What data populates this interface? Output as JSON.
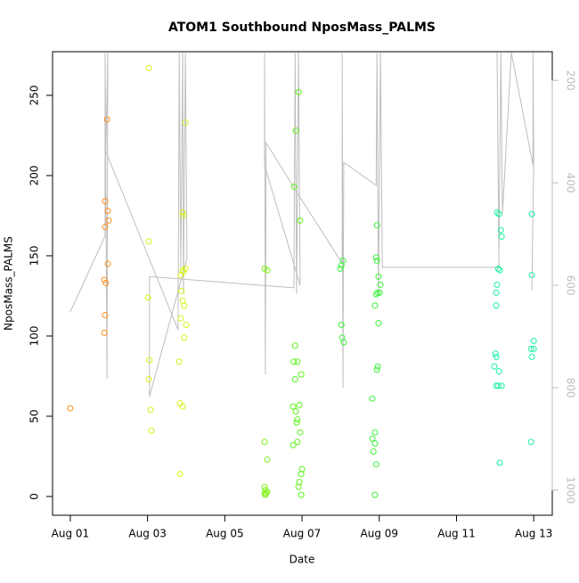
{
  "chart_data": {
    "type": "scatter",
    "title": "ATOM1 Southbound NposMass_PALMS",
    "x_label": "Date",
    "y_label": "NposMass_PALMS",
    "xlim": [
      0.54,
      13.48
    ],
    "xticks": [
      {
        "value": 1,
        "label": "Aug 01"
      },
      {
        "value": 3,
        "label": "Aug 03"
      },
      {
        "value": 5,
        "label": "Aug 05"
      },
      {
        "value": 7,
        "label": "Aug 07"
      },
      {
        "value": 9,
        "label": "Aug 09"
      },
      {
        "value": 11,
        "label": "Aug 11"
      },
      {
        "value": 13,
        "label": "Aug 13"
      }
    ],
    "ylim": [
      -11.7,
      277.2
    ],
    "yticks": [
      0,
      50,
      100,
      150,
      200,
      250
    ],
    "y2lim": [
      1049,
      144
    ],
    "y2ticks": [
      200,
      400,
      600,
      800,
      1000
    ],
    "y2_color": "#bebebe",
    "series": [
      {
        "mode": "line",
        "axis": "y2",
        "color": "#bebebe",
        "x": [
          1.0,
          1.9,
          1.9,
          1.95,
          1.97,
          1.92,
          3.79,
          3.82,
          3.86,
          3.91,
          3.93,
          3.98,
          4.02,
          3.05,
          3.05,
          6.79,
          6.82,
          6.86,
          6.91,
          6.95,
          6.03,
          6.03,
          6.05,
          6.07,
          6.93,
          8.04,
          8.04,
          8.06,
          8.08,
          8.92,
          8.94,
          8.98,
          9.03,
          9.08,
          12.1,
          12.05,
          12.1,
          12.15,
          12.19,
          12.42,
          12.98,
          12.98,
          13.0,
          12.95
        ],
        "values": [
          652,
          504,
          146,
          783,
          146,
          339,
          687,
          146,
          565,
          146,
          617,
          146,
          548,
          817,
          583,
          605,
          146,
          617,
          146,
          600,
          365,
          146,
          774,
          322,
          426,
          557,
          146,
          800,
          360,
          405,
          146,
          617,
          146,
          565,
          565,
          146,
          530,
          146,
          461,
          146,
          365,
          146,
          360,
          609
        ]
      },
      {
        "mode": "points",
        "color": "#ff8c1a",
        "x": [
          1.0,
          1.95,
          1.9,
          1.97,
          1.99,
          1.9,
          1.97,
          1.88,
          1.92,
          1.9,
          1.88
        ],
        "values": [
          55,
          235,
          184,
          178,
          172,
          168,
          145,
          135,
          133,
          113,
          102
        ]
      },
      {
        "mode": "points",
        "color": "#d9f21a",
        "x": [
          3.03,
          3.03,
          3.01,
          3.05,
          3.03,
          3.08,
          3.1,
          3.98,
          3.91,
          3.93,
          3.86,
          3.91,
          3.98,
          3.93,
          3.88,
          3.91,
          3.95,
          3.86,
          4.0,
          3.95,
          3.82,
          3.84,
          3.91,
          3.84
        ],
        "values": [
          267,
          159,
          124,
          85,
          73,
          54,
          41,
          233,
          177,
          175,
          138,
          141,
          142,
          140,
          128,
          122,
          119,
          111,
          107,
          99,
          84,
          58,
          56,
          14
        ]
      },
      {
        "mode": "points",
        "color": "#80f21a",
        "x": [
          6.03,
          6.1,
          6.03,
          6.1,
          6.03,
          6.05,
          6.03,
          6.07,
          6.05,
          6.1
        ],
        "values": [
          142,
          141,
          34,
          23,
          6,
          4,
          2,
          2,
          1,
          3
        ]
      },
      {
        "mode": "points",
        "color": "#5cf21a",
        "x": [
          6.91,
          6.84,
          6.79,
          6.95,
          6.82,
          6.79,
          6.88,
          6.98,
          6.82,
          6.77,
          6.84,
          6.88,
          6.86,
          6.93,
          6.95,
          6.88,
          6.77,
          7.0,
          6.98,
          6.93,
          6.91,
          6.98
        ],
        "values": [
          252,
          228,
          193,
          172,
          94,
          84,
          84,
          76,
          73,
          56,
          53,
          48,
          46,
          57,
          40,
          34,
          32,
          17,
          14,
          9,
          6,
          1
        ]
      },
      {
        "mode": "points",
        "color": "#3cf23c",
        "x": [
          8.06,
          8.02,
          7.99,
          8.02,
          8.04,
          8.08,
          8.94,
          8.92,
          8.94,
          8.98,
          9.03,
          8.96,
          8.92,
          9.01,
          8.89,
          8.98,
          8.96,
          8.94,
          8.82,
          8.89,
          8.82,
          8.89,
          8.85,
          8.92,
          8.89
        ],
        "values": [
          147,
          144,
          142,
          107,
          99,
          96,
          169,
          149,
          147,
          137,
          132,
          127,
          126,
          127,
          119,
          108,
          81,
          79,
          61,
          40,
          36,
          33,
          28,
          20,
          1
        ]
      },
      {
        "mode": "points",
        "color": "#1af2a0",
        "x": [
          12.05,
          12.1,
          12.15,
          12.17,
          12.08,
          12.12,
          12.05,
          12.03,
          12.03,
          12.01,
          12.03,
          11.98,
          12.1,
          12.03,
          12.08,
          12.17,
          12.12,
          12.95,
          12.95,
          13.0,
          12.93,
          13.0,
          12.95,
          12.93
        ],
        "values": [
          177,
          176,
          166,
          162,
          142,
          141,
          132,
          127,
          119,
          89,
          87,
          81,
          78,
          69,
          69,
          69,
          21,
          176,
          138,
          97,
          92,
          92,
          87,
          34
        ]
      }
    ]
  }
}
